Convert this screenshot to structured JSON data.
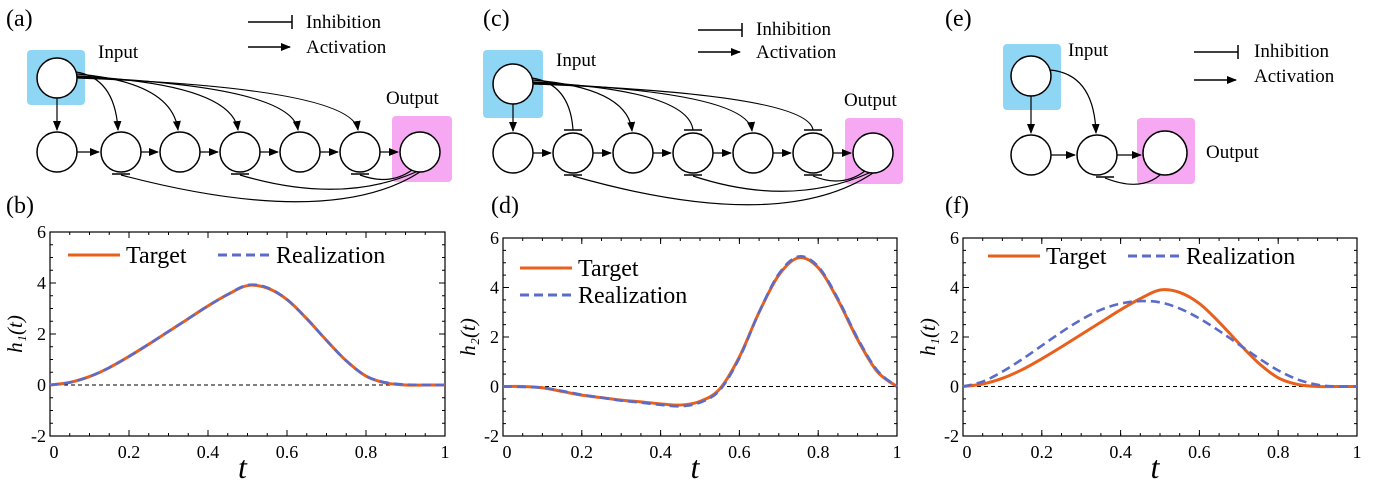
{
  "panel_labels": {
    "a": "(a)",
    "b": "(b)",
    "c": "(c)",
    "d": "(d)",
    "e": "(e)",
    "f": "(f)"
  },
  "legend_net": {
    "inhibition": "Inhibition",
    "activation": "Activation"
  },
  "node_labels": {
    "input": "Input",
    "output": "Output"
  },
  "colors": {
    "input_box": "#8fd6f5",
    "output_box": "#f7a8f2",
    "target": "#e8601c",
    "realization": "#5b6bc9"
  },
  "chart_data": [
    {
      "id": "b",
      "type": "line",
      "xlabel": "t",
      "ylabel": "h_1(t)",
      "xlim": [
        0,
        1
      ],
      "ylim": [
        -2,
        6
      ],
      "xticks": [
        "0",
        "0.2",
        "0.4",
        "0.6",
        "0.8",
        "1"
      ],
      "yticks": [
        "-2",
        "0",
        "2",
        "4",
        "6"
      ],
      "legend_placement": "top",
      "series": [
        {
          "name": "Target",
          "x": [
            0,
            0.05,
            0.1,
            0.15,
            0.2,
            0.25,
            0.3,
            0.35,
            0.4,
            0.45,
            0.5,
            0.55,
            0.6,
            0.65,
            0.7,
            0.75,
            0.8,
            0.85,
            0.9,
            0.95,
            1
          ],
          "y": [
            0,
            0.1,
            0.33,
            0.68,
            1.12,
            1.6,
            2.1,
            2.6,
            3.1,
            3.55,
            3.9,
            3.8,
            3.35,
            2.6,
            1.75,
            0.95,
            0.35,
            0.08,
            0,
            0,
            0
          ]
        },
        {
          "name": "Realization",
          "x": [
            0,
            0.05,
            0.1,
            0.15,
            0.2,
            0.25,
            0.3,
            0.35,
            0.4,
            0.45,
            0.5,
            0.55,
            0.6,
            0.65,
            0.7,
            0.75,
            0.8,
            0.85,
            0.9,
            0.95,
            1
          ],
          "y": [
            0,
            0.1,
            0.33,
            0.68,
            1.12,
            1.6,
            2.1,
            2.6,
            3.1,
            3.55,
            3.92,
            3.82,
            3.35,
            2.6,
            1.75,
            0.95,
            0.35,
            0.1,
            0.02,
            0,
            0
          ]
        }
      ]
    },
    {
      "id": "d",
      "type": "line",
      "xlabel": "t",
      "ylabel": "h_2(t)",
      "xlim": [
        0,
        1
      ],
      "ylim": [
        -2,
        6
      ],
      "xticks": [
        "0",
        "0.2",
        "0.4",
        "0.6",
        "0.8",
        "1"
      ],
      "yticks": [
        "-2",
        "0",
        "2",
        "4",
        "6"
      ],
      "legend_placement": "top-left",
      "series": [
        {
          "name": "Target",
          "x": [
            0,
            0.05,
            0.1,
            0.15,
            0.2,
            0.25,
            0.3,
            0.35,
            0.4,
            0.45,
            0.5,
            0.55,
            0.6,
            0.65,
            0.7,
            0.75,
            0.8,
            0.85,
            0.9,
            0.95,
            1
          ],
          "y": [
            0,
            0,
            -0.05,
            -0.2,
            -0.35,
            -0.45,
            -0.55,
            -0.62,
            -0.7,
            -0.75,
            -0.6,
            -0.1,
            1.2,
            3.0,
            4.5,
            5.2,
            4.8,
            3.5,
            1.9,
            0.6,
            0
          ]
        },
        {
          "name": "Realization",
          "x": [
            0,
            0.05,
            0.1,
            0.15,
            0.2,
            0.25,
            0.3,
            0.35,
            0.4,
            0.45,
            0.5,
            0.55,
            0.6,
            0.65,
            0.7,
            0.75,
            0.8,
            0.85,
            0.9,
            0.95,
            1
          ],
          "y": [
            0,
            -0.02,
            -0.05,
            -0.18,
            -0.33,
            -0.45,
            -0.57,
            -0.65,
            -0.74,
            -0.8,
            -0.65,
            -0.15,
            1.15,
            3.0,
            4.55,
            5.25,
            4.85,
            3.55,
            1.95,
            0.65,
            0
          ]
        }
      ]
    },
    {
      "id": "f",
      "type": "line",
      "xlabel": "t",
      "ylabel": "h_1(t)",
      "xlim": [
        0,
        1
      ],
      "ylim": [
        -2,
        6
      ],
      "xticks": [
        "0",
        "0.2",
        "0.4",
        "0.6",
        "0.8",
        "1"
      ],
      "yticks": [
        "-2",
        "0",
        "2",
        "4",
        "6"
      ],
      "legend_placement": "top",
      "series": [
        {
          "name": "Target",
          "x": [
            0,
            0.05,
            0.1,
            0.15,
            0.2,
            0.25,
            0.3,
            0.35,
            0.4,
            0.45,
            0.5,
            0.55,
            0.6,
            0.65,
            0.7,
            0.75,
            0.8,
            0.85,
            0.9,
            0.95,
            1
          ],
          "y": [
            0,
            0.1,
            0.33,
            0.68,
            1.12,
            1.6,
            2.1,
            2.6,
            3.1,
            3.55,
            3.9,
            3.8,
            3.35,
            2.6,
            1.75,
            0.95,
            0.35,
            0.08,
            0,
            0,
            0
          ]
        },
        {
          "name": "Realization",
          "x": [
            0,
            0.05,
            0.1,
            0.15,
            0.2,
            0.25,
            0.3,
            0.35,
            0.4,
            0.45,
            0.5,
            0.55,
            0.6,
            0.65,
            0.7,
            0.75,
            0.8,
            0.85,
            0.9,
            0.95,
            1
          ],
          "y": [
            0,
            0.2,
            0.6,
            1.1,
            1.65,
            2.2,
            2.7,
            3.1,
            3.35,
            3.45,
            3.4,
            3.15,
            2.75,
            2.25,
            1.7,
            1.15,
            0.65,
            0.28,
            0.07,
            0,
            0
          ]
        }
      ]
    }
  ]
}
